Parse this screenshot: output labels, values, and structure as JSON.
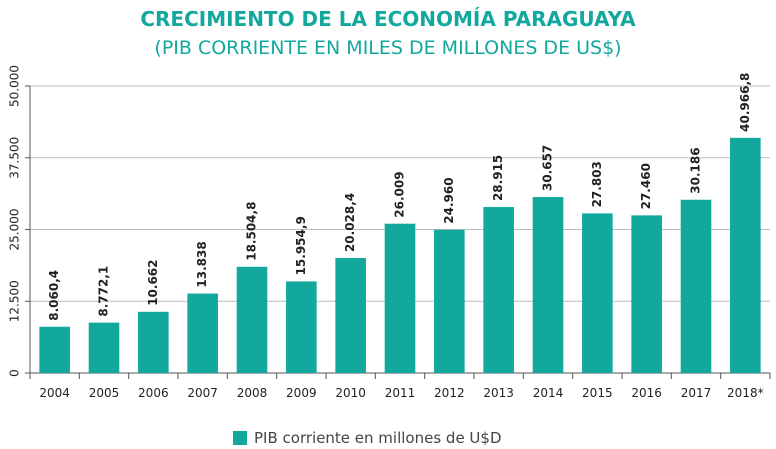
{
  "chart_data": {
    "type": "bar",
    "title": "CRECIMIENTO DE LA ECONOMÍA PARAGUAYA",
    "subtitle": "(PIB CORRIENTE EN MILES DE MILLONES DE US$)",
    "categories": [
      "2004",
      "2005",
      "2006",
      "2007",
      "2008",
      "2009",
      "2010",
      "2011",
      "2012",
      "2013",
      "2014",
      "2015",
      "2016",
      "2017",
      "2018*"
    ],
    "series": [
      {
        "name": "PIB corriente en millones de U$D",
        "color": "#13a89e",
        "values": [
          8060.4,
          8772.1,
          10662,
          13838,
          18504.8,
          15954.9,
          20028.4,
          26009,
          24960,
          28915,
          30657,
          27803,
          27460,
          30186,
          40966.8
        ],
        "value_labels": [
          "8.060,4",
          "8.772,1",
          "10.662",
          "13.838",
          "18.504,8",
          "15.954,9",
          "20.028,4",
          "26.009",
          "24.960",
          "28.915",
          "30.657",
          "27.803",
          "27.460",
          "30.186",
          "40.966,8"
        ]
      }
    ],
    "ylim": [
      0,
      50000
    ],
    "yticks": [
      0,
      {
        "value": 12500,
        "label": "12.500"
      },
      {
        "value": 25000,
        "label": "25.000"
      },
      {
        "value": 37500,
        "label": "37.500"
      },
      {
        "value": 50000,
        "label": "50.000"
      }
    ],
    "grid": true,
    "legend": "bottom"
  }
}
